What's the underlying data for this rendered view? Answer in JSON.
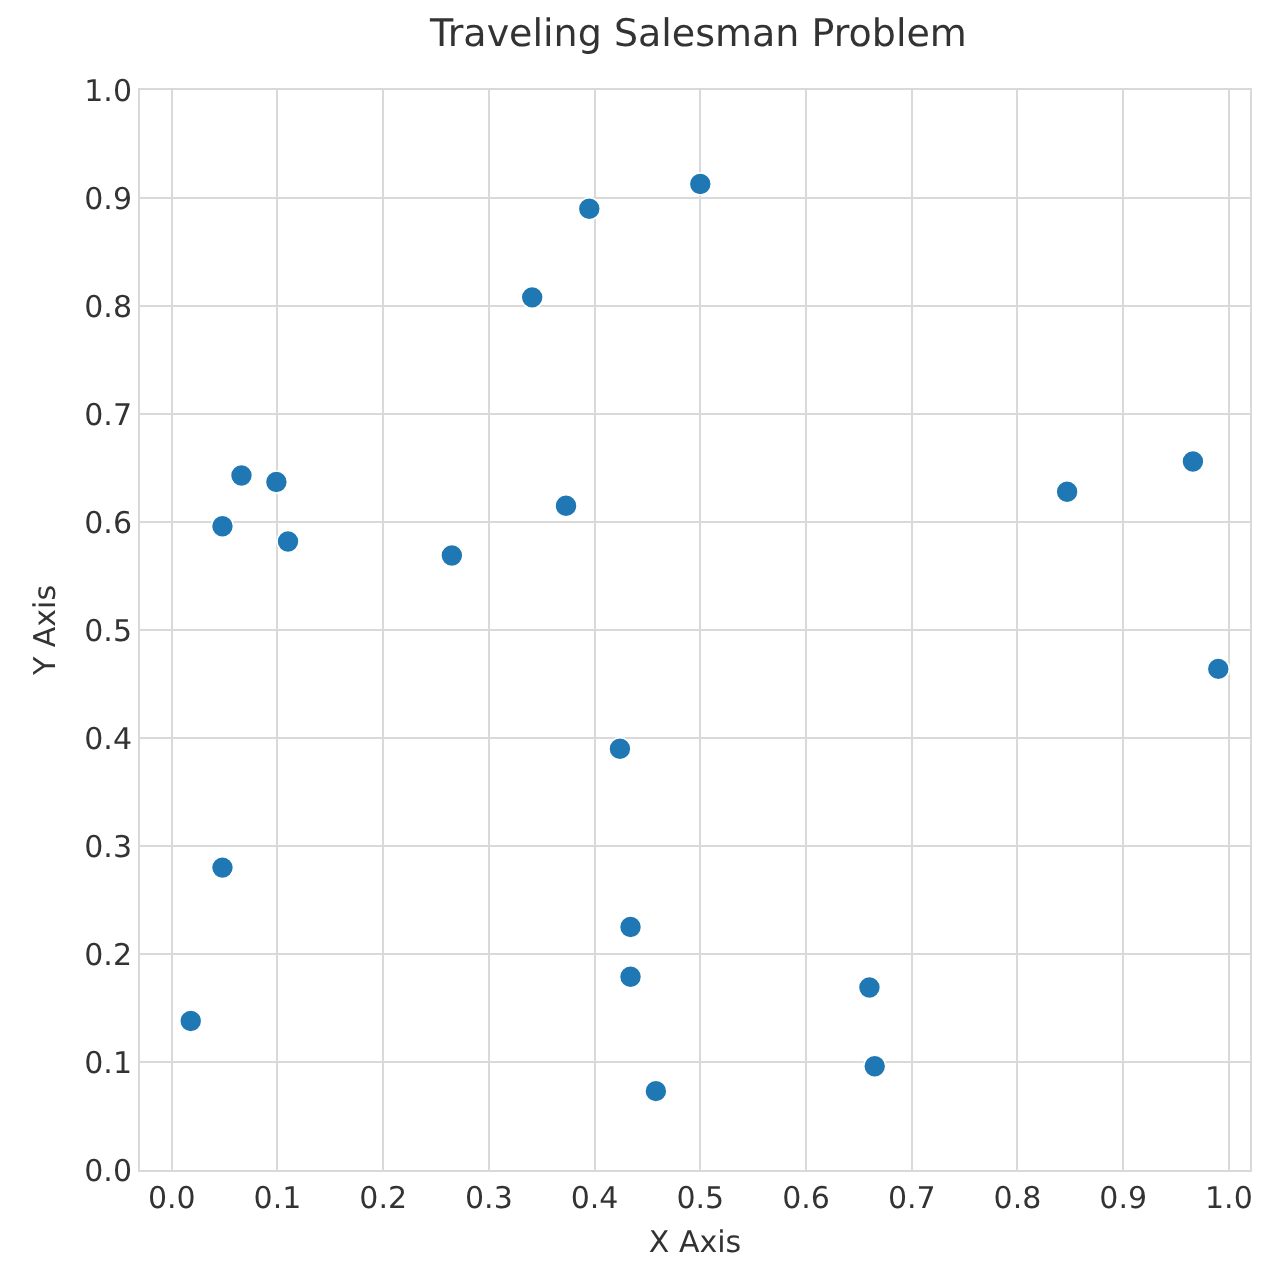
{
  "chart_data": {
    "type": "scatter",
    "title": "Traveling Salesman Problem",
    "xlabel": "X Axis",
    "ylabel": "Y Axis",
    "x": [
      0.018,
      0.048,
      0.048,
      0.066,
      0.099,
      0.11,
      0.265,
      0.341,
      0.373,
      0.395,
      0.5,
      0.424,
      0.434,
      0.434,
      0.458,
      0.66,
      0.665,
      0.847,
      0.966,
      0.99
    ],
    "series": [
      {
        "color": "#1f77b4",
        "values": [
          0.138,
          0.28,
          0.596,
          0.643,
          0.637,
          0.582,
          0.569,
          0.808,
          0.615,
          0.89,
          0.913,
          0.39,
          0.225,
          0.179,
          0.073,
          0.169,
          0.096,
          0.628,
          0.656,
          0.464
        ]
      }
    ],
    "xlim": [
      -0.03,
      1.02
    ],
    "ylim": [
      0.0,
      1.0
    ],
    "xticks": [
      {
        "value": 0,
        "label": "0.0"
      },
      0.1,
      0.2,
      0.3,
      0.4,
      0.5,
      0.6,
      0.7,
      0.8,
      0.9,
      {
        "value": 1,
        "label": "1.0"
      }
    ],
    "yticks": [
      {
        "value": 0,
        "label": "0.0"
      },
      0.1,
      0.2,
      0.3,
      0.4,
      0.5,
      0.6,
      0.7,
      0.8,
      0.9,
      {
        "value": 1,
        "label": "1.0"
      }
    ],
    "grid": true,
    "marker": "circle"
  }
}
